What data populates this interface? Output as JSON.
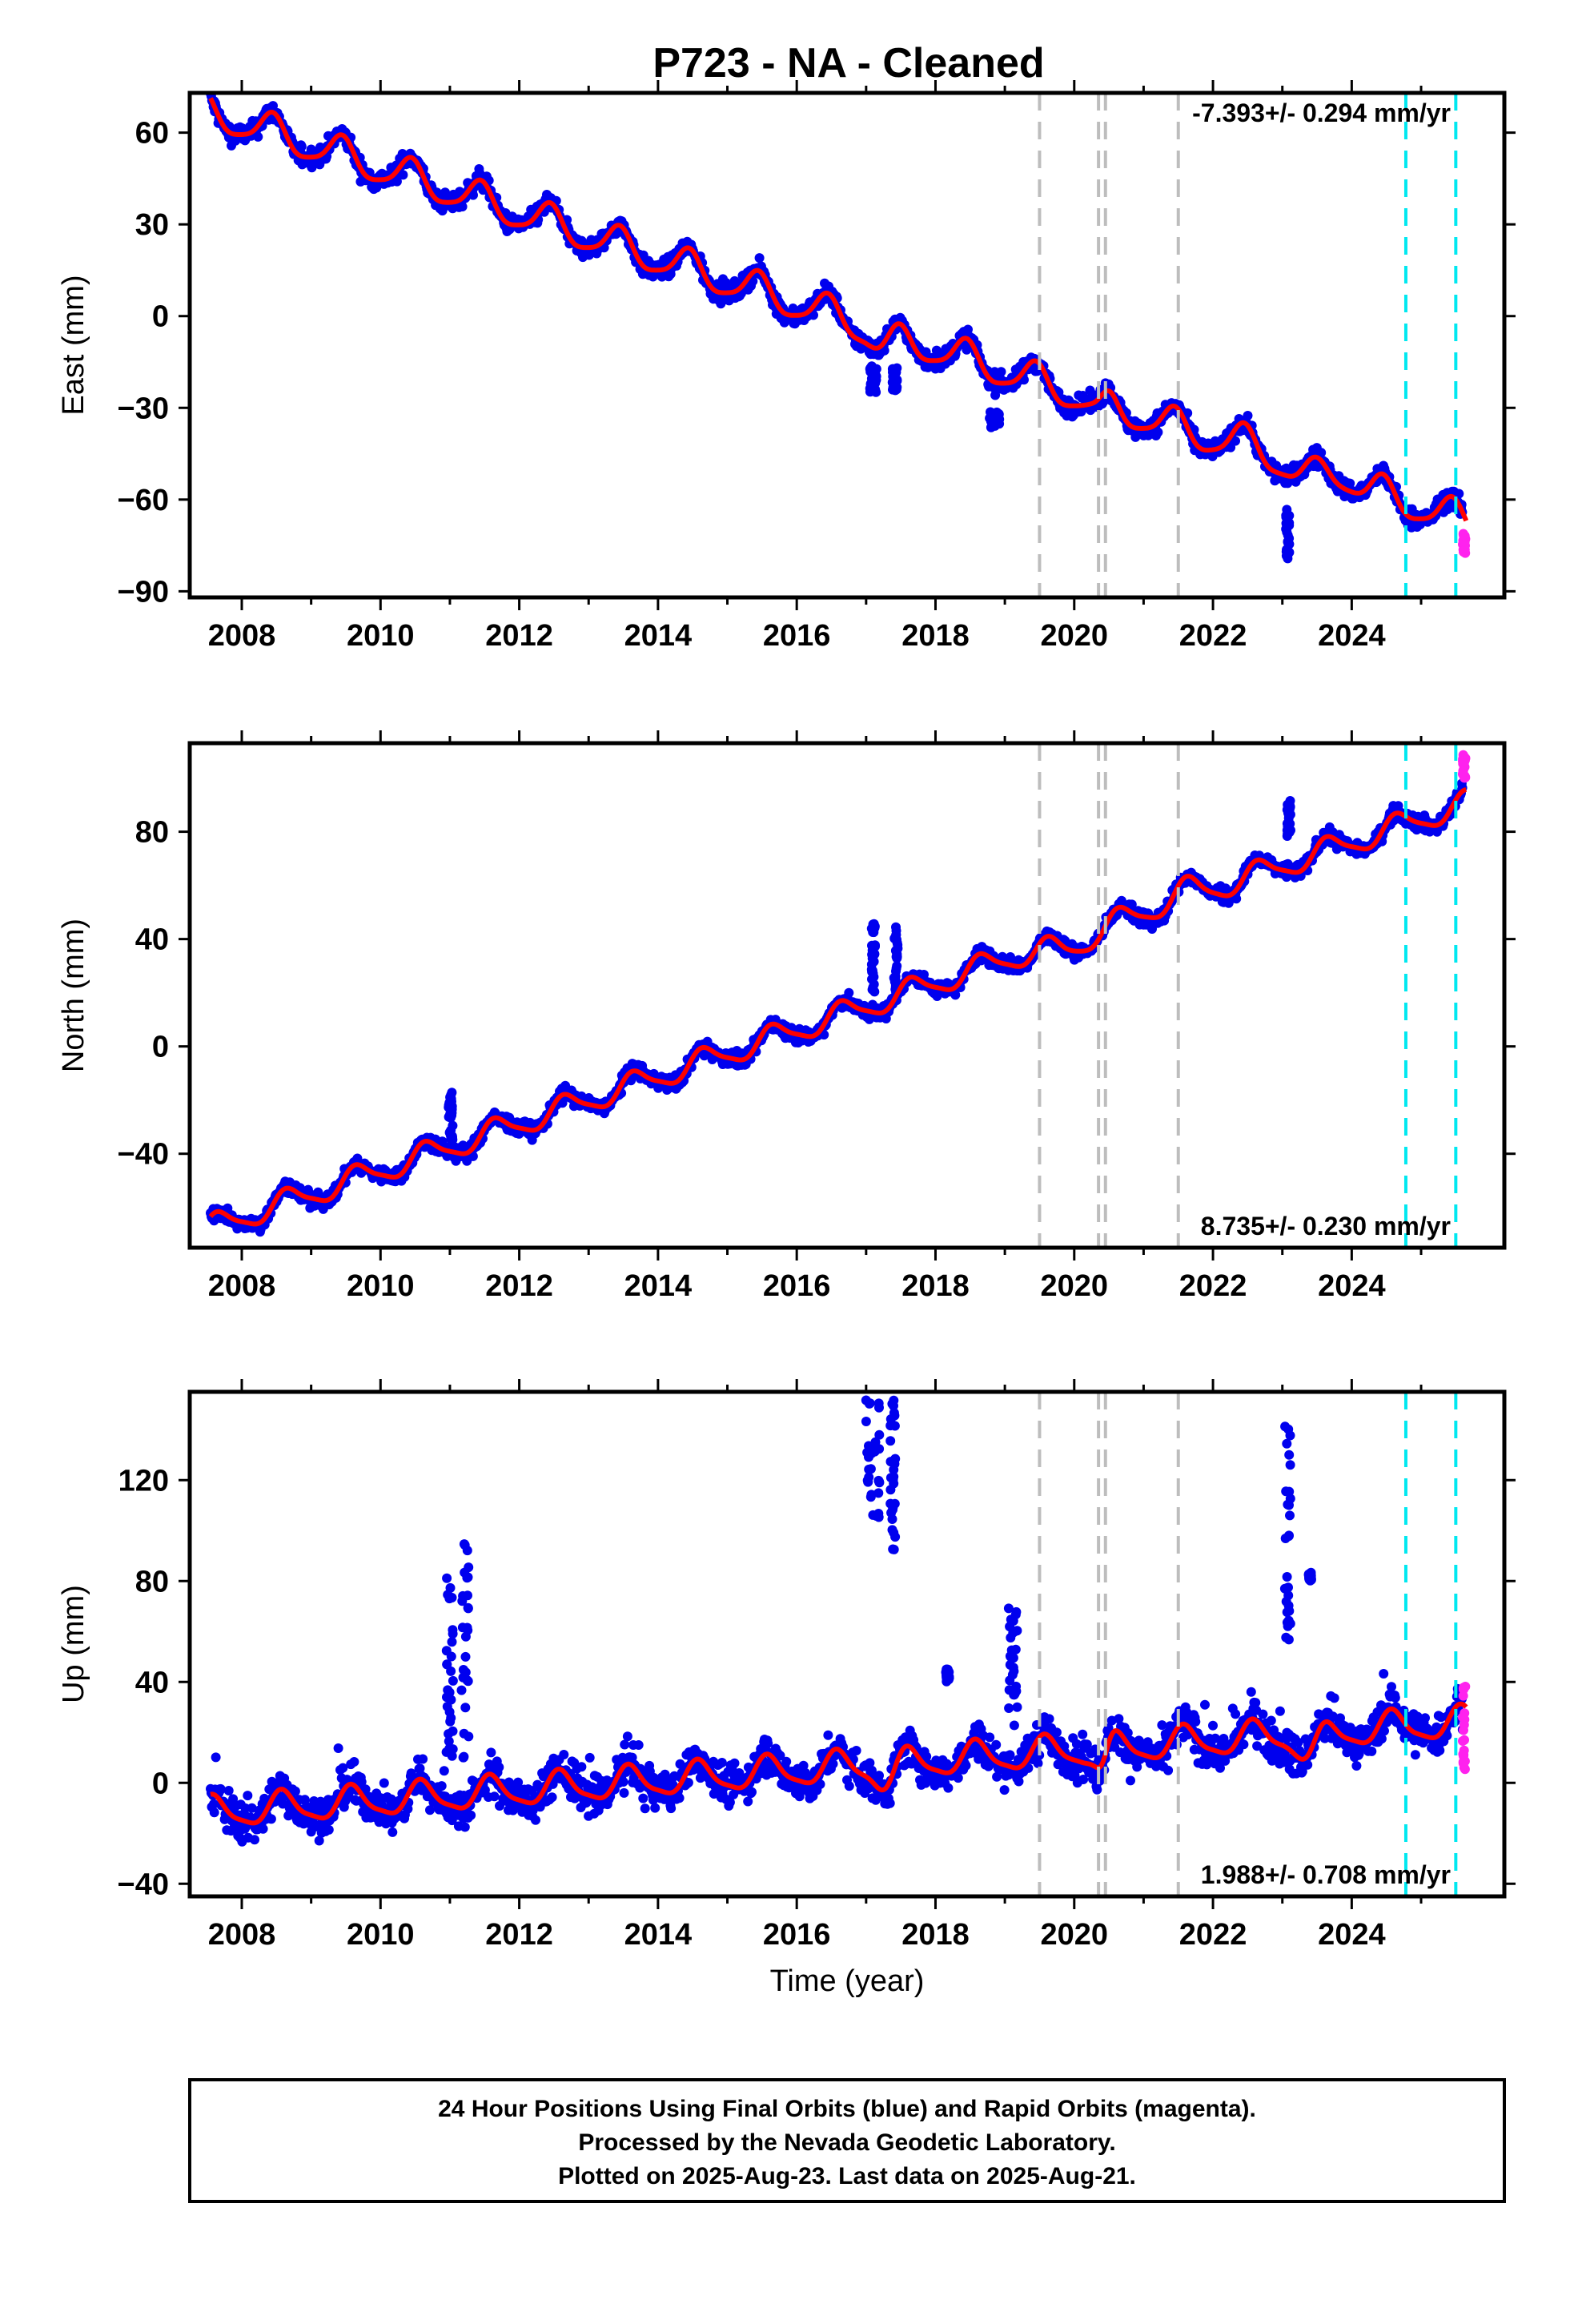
{
  "title": "P723  - NA - Cleaned",
  "footer": {
    "line1": "24 Hour Positions Using Final Orbits (blue) and Rapid Orbits (magenta).",
    "line2": "Processed by the Nevada Geodetic Laboratory.",
    "line3": "Plotted on 2025-Aug-23. Last data on 2025-Aug-21."
  },
  "colors": {
    "final_orbits": "#0000ee",
    "rapid_orbits": "#ff22ee",
    "model": "#ff0000",
    "event_lines": "#bdbdbd",
    "equipment_lines": "#00e8f0"
  },
  "chart_data": [
    {
      "type": "scatter",
      "component": "east",
      "ylabel": "East (mm)",
      "xlabel": "",
      "rate_label": "-7.393+/- 0.294 mm/yr",
      "rate_position": "top-right",
      "xlim": [
        2007.25,
        2026.2
      ],
      "ylim": [
        -92,
        73
      ],
      "x_ticks": [
        2008,
        2010,
        2012,
        2014,
        2016,
        2018,
        2020,
        2022,
        2024
      ],
      "y_ticks": [
        60,
        30,
        0,
        -30,
        -60,
        -90
      ],
      "y_tick_labels": [
        "60",
        "30",
        "0",
        "−30",
        "−60",
        "−90"
      ],
      "grid": false,
      "trend": {
        "t0": 2007.5,
        "offset": 67,
        "rate": -7.393
      },
      "seasonal": {
        "amp_annual": 5.5,
        "phase": 2.0,
        "amp_semiannual": 1.2
      },
      "scatter_noise": 2.2,
      "outlier_spread": 0,
      "model_excursions": [
        {
          "t": 2017.25,
          "w": 0.25,
          "d": -5
        },
        {
          "t": 2020.35,
          "w": 0.15,
          "d": -4
        },
        {
          "t": 2022.5,
          "w": 0.4,
          "d": 2
        },
        {
          "t": 2023.4,
          "w": 0.3,
          "d": -4
        },
        {
          "t": 2023.7,
          "w": 0.3,
          "d": 4
        }
      ],
      "final_clusters": [
        {
          "t0": 2017.05,
          "t1": 2017.15,
          "lo": -25,
          "hi": -16
        },
        {
          "t0": 2017.38,
          "t1": 2017.45,
          "lo": -25,
          "hi": -16
        },
        {
          "t0": 2018.78,
          "t1": 2018.95,
          "lo": -38,
          "hi": -31
        },
        {
          "t0": 2023.05,
          "t1": 2023.1,
          "lo": -80,
          "hi": -63
        }
      ],
      "rapid_orbits": {
        "t0": 2025.6,
        "t1": 2025.64,
        "lo": -78,
        "hi": -71
      },
      "event_lines_x": [
        2019.5,
        2020.35,
        2020.45,
        2021.5
      ],
      "equipment_lines_x": [
        2024.78,
        2025.5
      ]
    },
    {
      "type": "scatter",
      "component": "north",
      "ylabel": "North (mm)",
      "xlabel": "",
      "rate_label": "8.735+/- 0.230 mm/yr",
      "rate_position": "bottom-right",
      "xlim": [
        2007.25,
        2026.2
      ],
      "ylim": [
        -75,
        113
      ],
      "x_ticks": [
        2008,
        2010,
        2012,
        2014,
        2016,
        2018,
        2020,
        2022,
        2024
      ],
      "y_ticks": [
        80,
        40,
        0,
        -40
      ],
      "y_tick_labels": [
        "80",
        "40",
        "0",
        "−40"
      ],
      "grid": false,
      "trend": {
        "t0": 2007.5,
        "offset": -68,
        "rate": 8.735
      },
      "seasonal": {
        "amp_annual": 4.5,
        "phase": 0.5,
        "amp_semiannual": 1.0
      },
      "scatter_noise": 2.0,
      "outlier_spread": 0,
      "model_excursions": [
        {
          "t": 2019.95,
          "w": 0.4,
          "d": -4
        },
        {
          "t": 2021.55,
          "w": 0.3,
          "d": 3
        }
      ],
      "final_clusters": [
        {
          "t0": 2010.98,
          "t1": 2011.04,
          "lo": -35,
          "hi": -17
        },
        {
          "t0": 2017.08,
          "t1": 2017.13,
          "lo": 20,
          "hi": 47
        },
        {
          "t0": 2017.4,
          "t1": 2017.46,
          "lo": 20,
          "hi": 45
        },
        {
          "t0": 2023.07,
          "t1": 2023.12,
          "lo": 78,
          "hi": 92
        }
      ],
      "rapid_orbits": {
        "t0": 2025.6,
        "t1": 2025.64,
        "lo": 100,
        "hi": 109
      },
      "event_lines_x": [
        2019.5,
        2020.35,
        2020.45,
        2021.5
      ],
      "equipment_lines_x": [
        2024.78,
        2025.5
      ]
    },
    {
      "type": "scatter",
      "component": "up",
      "ylabel": "Up (mm)",
      "xlabel": "Time (year)",
      "rate_label": "1.988+/- 0.708 mm/yr",
      "rate_position": "bottom-right",
      "xlim": [
        2007.25,
        2026.2
      ],
      "ylim": [
        -45,
        155
      ],
      "x_ticks": [
        2008,
        2010,
        2012,
        2014,
        2016,
        2018,
        2020,
        2022,
        2024
      ],
      "y_ticks": [
        120,
        80,
        40,
        0,
        -40
      ],
      "y_tick_labels": [
        "120",
        "80",
        "40",
        "0",
        "−40"
      ],
      "grid": false,
      "trend": {
        "t0": 2007.5,
        "offset": -12,
        "rate": 1.988
      },
      "seasonal": {
        "amp_annual": 6.0,
        "phase": 1.0,
        "amp_semiannual": 1.5
      },
      "scatter_noise": 5.5,
      "outlier_spread": 0.02,
      "model_excursions": [
        {
          "t": 2017.3,
          "w": 0.2,
          "d": -6
        },
        {
          "t": 2020.4,
          "w": 0.12,
          "d": -8
        },
        {
          "t": 2023.4,
          "w": 0.2,
          "d": -9
        }
      ],
      "final_clusters": [
        {
          "t0": 2010.95,
          "t1": 2011.05,
          "lo": 10,
          "hi": 88
        },
        {
          "t0": 2011.15,
          "t1": 2011.28,
          "lo": 10,
          "hi": 97
        },
        {
          "t0": 2017.0,
          "t1": 2017.2,
          "lo": 105,
          "hi": 152
        },
        {
          "t0": 2017.35,
          "t1": 2017.42,
          "lo": 90,
          "hi": 152
        },
        {
          "t0": 2018.15,
          "t1": 2018.2,
          "lo": 40,
          "hi": 45
        },
        {
          "t0": 2019.05,
          "t1": 2019.18,
          "lo": 20,
          "hi": 72
        },
        {
          "t0": 2023.03,
          "t1": 2023.12,
          "lo": 55,
          "hi": 147
        },
        {
          "t0": 2023.38,
          "t1": 2023.42,
          "lo": 80,
          "hi": 84
        }
      ],
      "rapid_orbits": {
        "t0": 2025.6,
        "t1": 2025.64,
        "lo": 5,
        "hi": 39
      },
      "event_lines_x": [
        2019.5,
        2020.35,
        2020.45,
        2021.5
      ],
      "equipment_lines_x": [
        2024.78,
        2025.5
      ]
    }
  ]
}
